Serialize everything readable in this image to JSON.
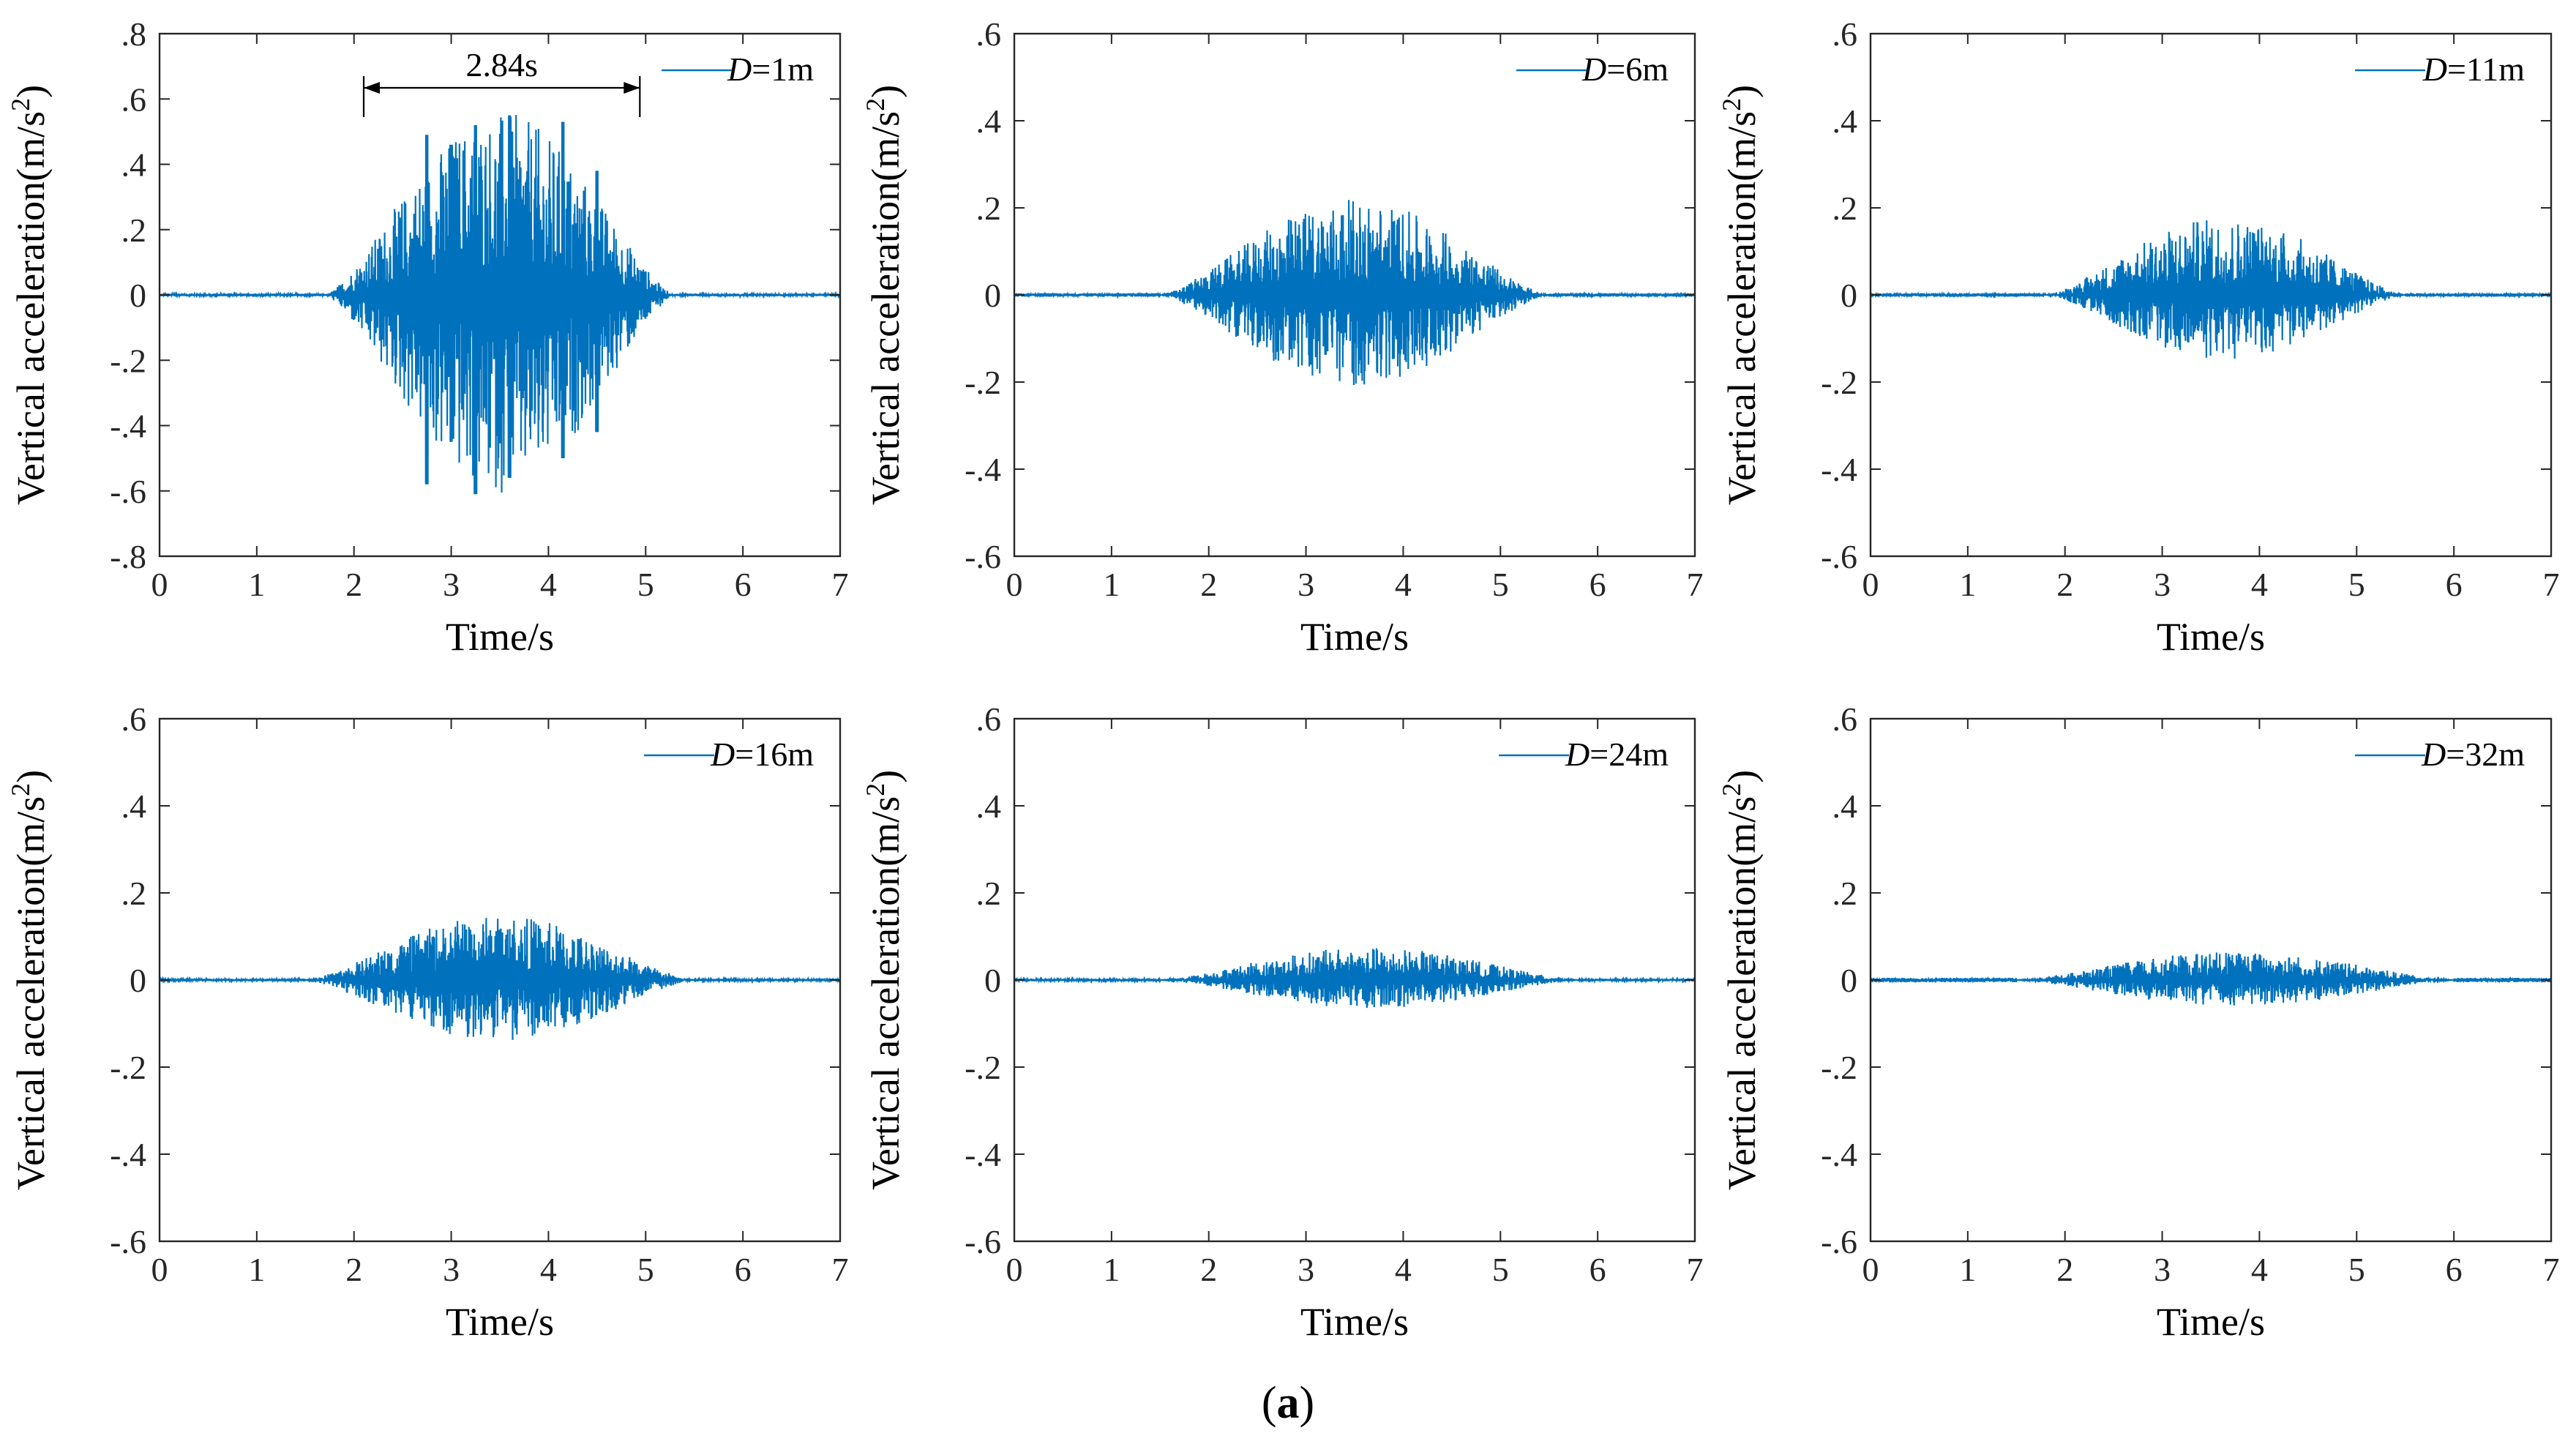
{
  "figure": {
    "caption_open": "(",
    "caption_label": "a",
    "caption_close": ")"
  },
  "colors": {
    "series": "#0072bd",
    "axis": "#262626",
    "annotation": "#000000"
  },
  "chart_data": [
    {
      "type": "line",
      "legend": {
        "italic": "D",
        "text": "=1m",
        "position": "top-right"
      },
      "xlabel": "Time/s",
      "ylabel_base": "Vertical acceleration(m/s",
      "ylabel_sup": "2",
      "ylabel_close": ")",
      "xlim": [
        0,
        7
      ],
      "ylim": [
        -0.8,
        0.8
      ],
      "xticks": [
        0,
        1,
        2,
        3,
        4,
        5,
        6,
        7
      ],
      "yticks": [
        -0.8,
        -0.6,
        -0.4,
        -0.2,
        0,
        0.2,
        0.4,
        0.6,
        0.8
      ],
      "annotation": {
        "text": "2.84s",
        "x_start": 2.1,
        "x_end": 4.94
      },
      "signal": {
        "onset": 1.7,
        "end": 5.3,
        "peak_pos": 0.56,
        "peak_neg": -0.61,
        "noise": 0.004,
        "peaks": [
          [
            2.75,
            0.49,
            -0.58
          ],
          [
            3.25,
            0.52,
            -0.61
          ],
          [
            3.6,
            0.55,
            -0.56
          ],
          [
            4.15,
            0.53,
            -0.5
          ],
          [
            3.0,
            0.46,
            -0.45
          ],
          [
            4.5,
            0.38,
            -0.42
          ]
        ]
      }
    },
    {
      "type": "line",
      "legend": {
        "italic": "D",
        "text": "=6m",
        "position": "top-right"
      },
      "xlabel": "Time/s",
      "ylabel_base": "Vertical acceleration(m/s",
      "ylabel_sup": "2",
      "ylabel_close": ")",
      "xlim": [
        0,
        7
      ],
      "ylim": [
        -0.6,
        0.6
      ],
      "xticks": [
        0,
        1,
        2,
        3,
        4,
        5,
        6,
        7
      ],
      "yticks": [
        -0.6,
        -0.4,
        -0.2,
        0,
        0.2,
        0.4,
        0.6
      ],
      "signal": {
        "onset": 1.5,
        "end": 5.5,
        "peak_pos": 0.22,
        "peak_neg": -0.21,
        "noise": 0.004,
        "peaks": []
      }
    },
    {
      "type": "line",
      "legend": {
        "italic": "D",
        "text": "=11m",
        "position": "top-right"
      },
      "xlabel": "Time/s",
      "ylabel_base": "Vertical acceleration(m/s",
      "ylabel_sup": "2",
      "ylabel_close": ")",
      "xlim": [
        0,
        7
      ],
      "ylim": [
        -0.6,
        0.6
      ],
      "xticks": [
        0,
        1,
        2,
        3,
        4,
        5,
        6,
        7
      ],
      "yticks": [
        -0.6,
        -0.4,
        -0.2,
        0,
        0.2,
        0.4,
        0.6
      ],
      "signal": {
        "onset": 1.8,
        "end": 5.5,
        "peak_pos": 0.18,
        "peak_neg": -0.15,
        "noise": 0.004,
        "peaks": []
      }
    },
    {
      "type": "line",
      "legend": {
        "italic": "D",
        "text": "=16m",
        "position": "top-right"
      },
      "xlabel": "Time/s",
      "ylabel_base": "Vertical acceleration(m/s",
      "ylabel_sup": "2",
      "ylabel_close": ")",
      "xlim": [
        0,
        7
      ],
      "ylim": [
        -0.6,
        0.6
      ],
      "xticks": [
        0,
        1,
        2,
        3,
        4,
        5,
        6,
        7
      ],
      "yticks": [
        -0.6,
        -0.4,
        -0.2,
        0,
        0.2,
        0.4,
        0.6
      ],
      "signal": {
        "onset": 1.5,
        "end": 5.5,
        "peak_pos": 0.15,
        "peak_neg": -0.14,
        "noise": 0.003,
        "peaks": []
      }
    },
    {
      "type": "line",
      "legend": {
        "italic": "D",
        "text": "=24m",
        "position": "top-right"
      },
      "xlabel": "Time/s",
      "ylabel_base": "Vertical acceleration(m/s",
      "ylabel_sup": "2",
      "ylabel_close": ")",
      "xlim": [
        0,
        7
      ],
      "ylim": [
        -0.6,
        0.6
      ],
      "xticks": [
        0,
        1,
        2,
        3,
        4,
        5,
        6,
        7
      ],
      "yticks": [
        -0.6,
        -0.4,
        -0.2,
        0,
        0.2,
        0.4,
        0.6
      ],
      "signal": {
        "onset": 1.5,
        "end": 5.8,
        "peak_pos": 0.075,
        "peak_neg": -0.065,
        "noise": 0.003,
        "peaks": []
      }
    },
    {
      "type": "line",
      "legend": {
        "italic": "D",
        "text": "=32m",
        "position": "top-right"
      },
      "xlabel": "Time/s",
      "ylabel_base": "Vertical acceleration(m/s",
      "ylabel_sup": "2",
      "ylabel_close": ")",
      "xlim": [
        0,
        7
      ],
      "ylim": [
        -0.6,
        0.6
      ],
      "xticks": [
        0,
        1,
        2,
        3,
        4,
        5,
        6,
        7
      ],
      "yticks": [
        -0.6,
        -0.4,
        -0.2,
        0,
        0.2,
        0.4,
        0.6
      ],
      "signal": {
        "onset": 1.5,
        "end": 6.0,
        "peak_pos": 0.065,
        "peak_neg": -0.06,
        "noise": 0.005,
        "peaks": []
      }
    }
  ]
}
